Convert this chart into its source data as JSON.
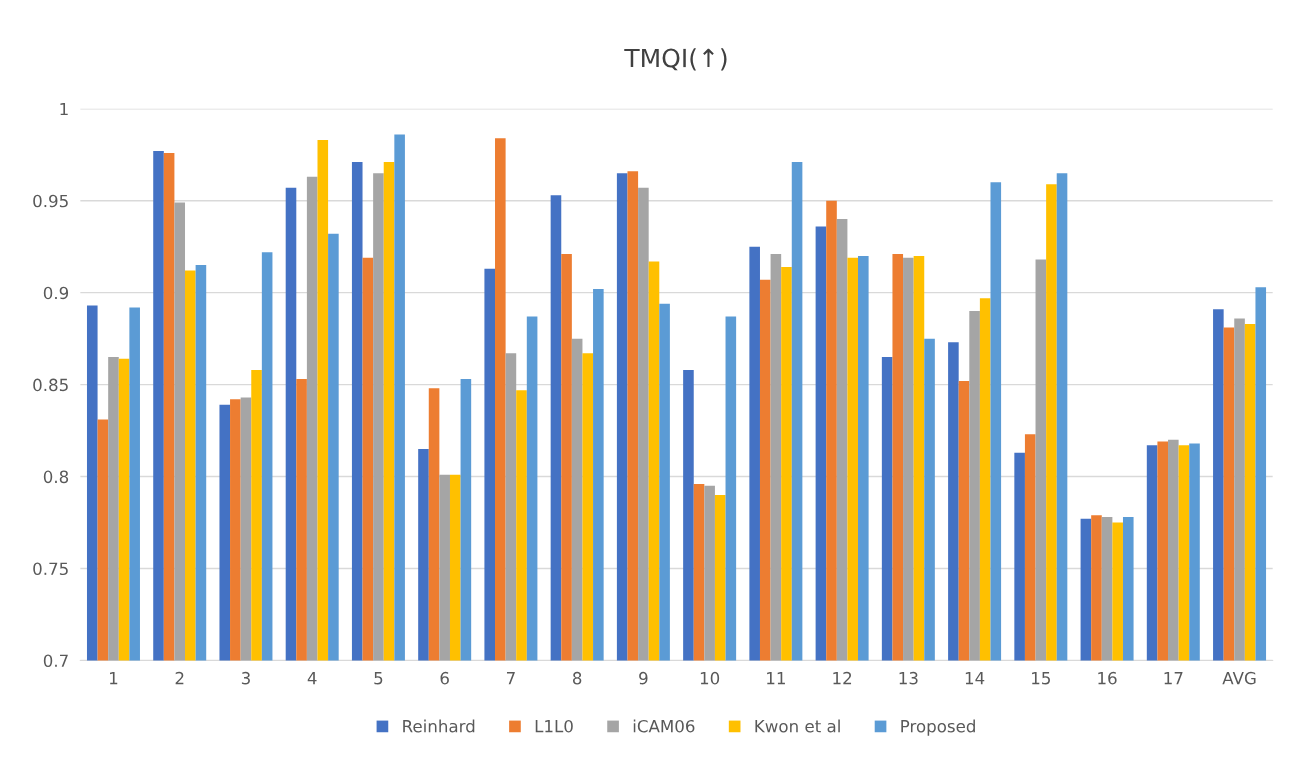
{
  "chart_data": {
    "type": "bar",
    "title": "TMQI(↑)",
    "categories": [
      "1",
      "2",
      "3",
      "4",
      "5",
      "6",
      "7",
      "8",
      "9",
      "10",
      "11",
      "12",
      "13",
      "14",
      "15",
      "16",
      "17",
      "AVG"
    ],
    "series": [
      {
        "name": "Reinhard",
        "color": "#4472c4",
        "values": [
          0.893,
          0.977,
          0.839,
          0.957,
          0.971,
          0.815,
          0.913,
          0.953,
          0.965,
          0.858,
          0.925,
          0.936,
          0.865,
          0.873,
          0.813,
          0.777,
          0.817,
          0.891
        ]
      },
      {
        "name": "L1L0",
        "color": "#ed7d31",
        "values": [
          0.831,
          0.976,
          0.842,
          0.853,
          0.919,
          0.848,
          0.984,
          0.921,
          0.966,
          0.796,
          0.907,
          0.95,
          0.921,
          0.852,
          0.823,
          0.779,
          0.819,
          0.881
        ]
      },
      {
        "name": "iCAM06",
        "color": "#a5a5a5",
        "values": [
          0.865,
          0.949,
          0.843,
          0.963,
          0.965,
          0.801,
          0.867,
          0.875,
          0.957,
          0.795,
          0.921,
          0.94,
          0.919,
          0.89,
          0.918,
          0.778,
          0.82,
          0.886
        ]
      },
      {
        "name": "Kwon et al",
        "color": "#ffc000",
        "values": [
          0.864,
          0.912,
          0.858,
          0.983,
          0.971,
          0.801,
          0.847,
          0.867,
          0.917,
          0.79,
          0.914,
          0.919,
          0.92,
          0.897,
          0.959,
          0.775,
          0.817,
          0.883
        ]
      },
      {
        "name": "Proposed",
        "color": "#5b9bd5",
        "values": [
          0.892,
          0.915,
          0.922,
          0.932,
          0.986,
          0.853,
          0.887,
          0.902,
          0.894,
          0.887,
          0.971,
          0.92,
          0.875,
          0.96,
          0.965,
          0.778,
          0.818,
          0.903
        ]
      }
    ],
    "ylim": [
      0.7,
      1.0
    ],
    "yticks": [
      0.7,
      0.75,
      0.8,
      0.85,
      0.9,
      0.95,
      1
    ],
    "grid": "y",
    "legend": "bottom"
  }
}
